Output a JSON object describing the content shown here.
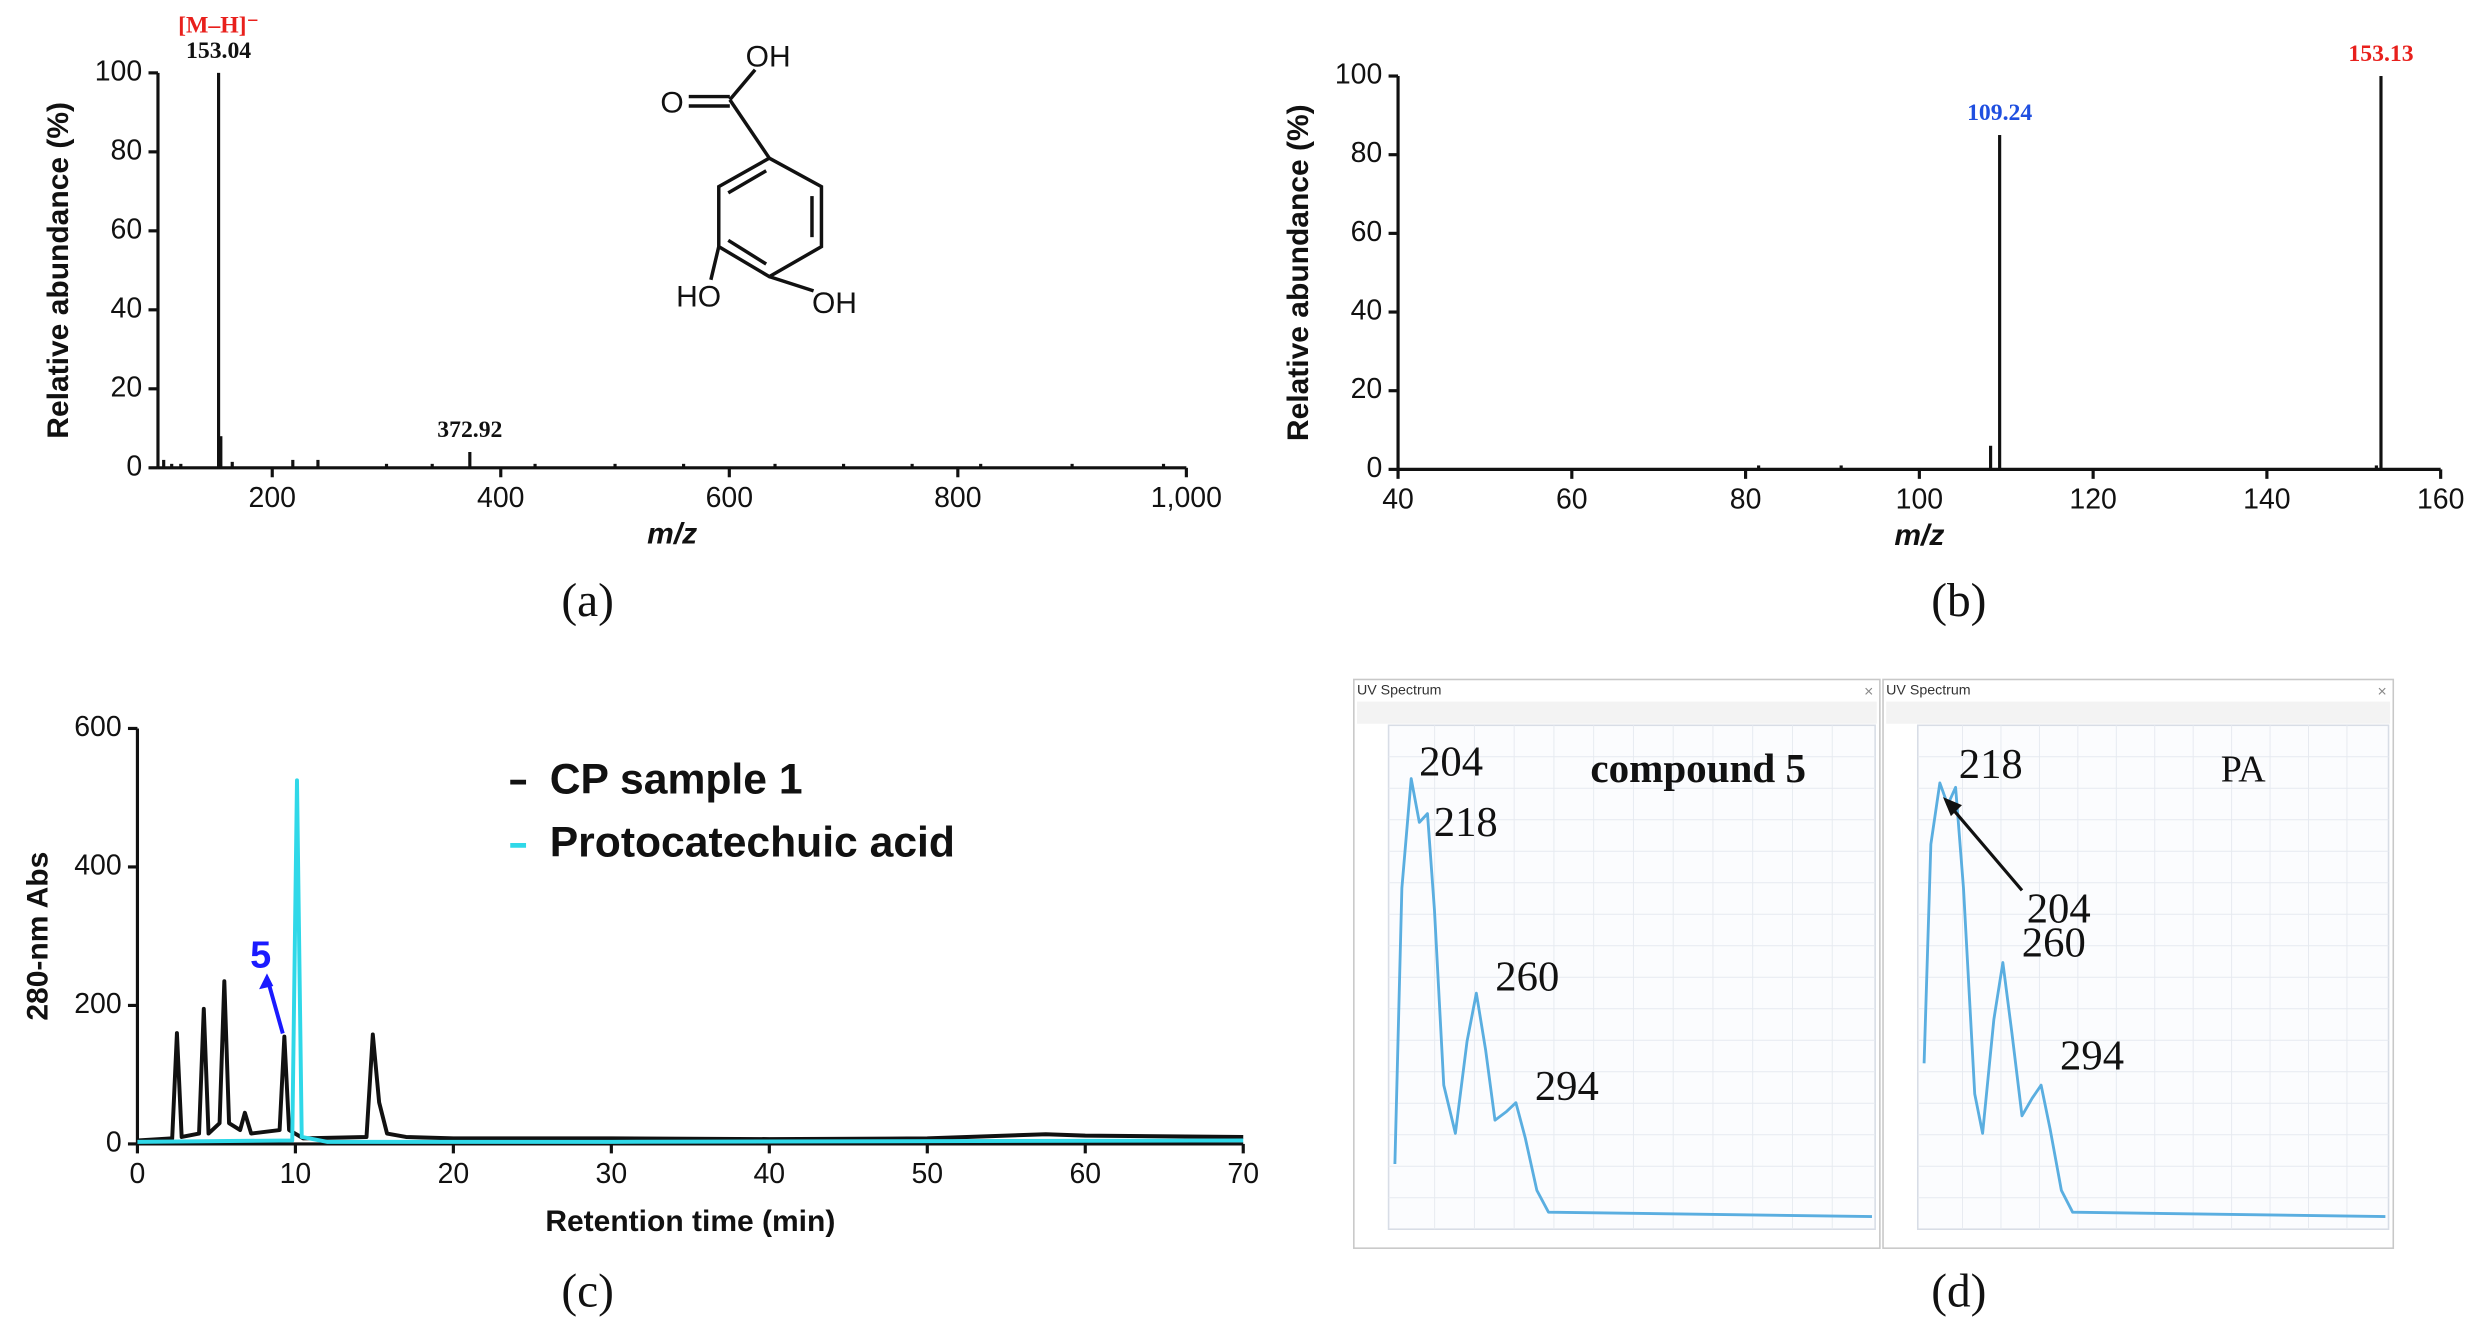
{
  "chart_data": [
    {
      "type": "bar",
      "label": "(a)",
      "x_label": "m/z",
      "y_label": "Relative abundance (%)",
      "color": "#111111",
      "x": [
        105,
        112,
        120,
        153.04,
        155,
        165,
        218,
        240,
        300,
        340,
        372.92,
        430,
        500,
        560,
        640,
        700,
        760,
        820,
        900,
        980
      ],
      "values": [
        2,
        1,
        1,
        100,
        8,
        1.5,
        2,
        2,
        1,
        1,
        4,
        1,
        1,
        1,
        1,
        1,
        1,
        1,
        1,
        1
      ],
      "xlim": [
        100,
        1000
      ],
      "xticks": [
        200,
        400,
        600,
        800,
        {
          "value": 1000,
          "label": "1,000"
        }
      ],
      "ylim": [
        0,
        100
      ],
      "yticks": [
        0,
        20,
        40,
        60,
        80,
        100
      ],
      "annotations": [
        {
          "x": 153.04,
          "color": "#111111",
          "text": "[M–H]⁻",
          "text_color": "#e8201c"
        },
        {
          "x": 372.92,
          "color": "#111111"
        }
      ],
      "structure": {
        "labels": [
          "OH",
          "O",
          "HO",
          "OH"
        ]
      }
    },
    {
      "type": "bar",
      "label": "(b)",
      "x_label": "m/z",
      "y_label": "Relative abundance (%)",
      "color": "#111111",
      "x": [
        81.5,
        91,
        108.2,
        109.24,
        152.6,
        153.13
      ],
      "values": [
        1,
        1,
        6,
        85,
        1,
        100
      ],
      "xlim": [
        40,
        160
      ],
      "xticks": [
        40,
        60,
        80,
        100,
        120,
        140,
        160
      ],
      "ylim": [
        0,
        100
      ],
      "yticks": [
        0,
        20,
        40,
        60,
        80,
        100
      ],
      "annotations": [
        {
          "x": 109.24,
          "color": "#1f4fe0"
        },
        {
          "x": 153.13,
          "color": "#e8201c"
        }
      ]
    },
    {
      "type": "line",
      "label": "(c)",
      "x_label": "Retention time (min)",
      "y_label": "280-nm Abs",
      "xlim": [
        0,
        70
      ],
      "xticks": [
        0,
        10,
        20,
        30,
        40,
        50,
        60,
        70
      ],
      "ylim": [
        0,
        600
      ],
      "yticks": [
        0,
        200,
        400,
        600
      ],
      "legend": "upper right",
      "series": [
        {
          "name": "CP sample 1",
          "color": "#111111",
          "x": [
            0,
            2.2,
            2.5,
            2.8,
            3.9,
            4.2,
            4.5,
            5.2,
            5.5,
            5.8,
            6.5,
            6.8,
            7.2,
            9,
            9.3,
            9.6,
            10.5,
            14.5,
            14.9,
            15.3,
            15.8,
            17,
            20,
            30,
            40,
            50,
            57.5,
            60,
            70
          ],
          "values": [
            5,
            8,
            160,
            10,
            15,
            195,
            15,
            30,
            235,
            30,
            20,
            45,
            15,
            20,
            155,
            20,
            8,
            10,
            158,
            60,
            15,
            10,
            8,
            8,
            7,
            8,
            14,
            12,
            10
          ]
        },
        {
          "name": "Protocatechuic acid",
          "color": "#2fd8e8",
          "x": [
            0,
            9.8,
            10.1,
            10.4,
            12,
            30,
            70
          ],
          "values": [
            3,
            5,
            525,
            10,
            3,
            3,
            5
          ]
        }
      ],
      "annotations": [
        {
          "text": "5",
          "x": 9.3,
          "color": "#1a1aff"
        }
      ]
    },
    {
      "type": "line",
      "label": "(d)",
      "title": "UV Spectrum",
      "subtitle": "compound 5",
      "xlim": [
        190,
        600
      ],
      "ylim": [
        0,
        110
      ],
      "series": [
        {
          "color": "#5aaee0",
          "x": [
            190,
            196,
            204,
            211,
            218,
            224,
            232,
            242,
            252,
            260,
            268,
            276,
            286,
            294,
            302,
            312,
            322,
            600
          ],
          "values": [
            12,
            75,
            100,
            90,
            92,
            70,
            30,
            19,
            40,
            51,
            38,
            22,
            24,
            26,
            18,
            6,
            1,
            0
          ]
        }
      ],
      "annotations": [
        {
          "x": 204
        },
        {
          "x": 218
        },
        {
          "x": 260
        },
        {
          "x": 294
        }
      ]
    },
    {
      "type": "line",
      "title": "UV Spectrum",
      "subtitle": "PA",
      "xlim": [
        190,
        600
      ],
      "ylim": [
        0,
        110
      ],
      "series": [
        {
          "color": "#5aaee0",
          "x": [
            190,
            196,
            204,
            211,
            218,
            225,
            235,
            242,
            252,
            260,
            268,
            277,
            286,
            294,
            302,
            312,
            322,
            600
          ],
          "values": [
            35,
            85,
            99,
            94,
            98,
            75,
            28,
            19,
            45,
            58,
            42,
            23,
            27,
            30,
            20,
            6,
            1,
            0
          ]
        }
      ],
      "annotations": [
        {
          "x": 204
        },
        {
          "x": 218
        },
        {
          "x": 260
        },
        {
          "x": 294
        }
      ]
    }
  ]
}
